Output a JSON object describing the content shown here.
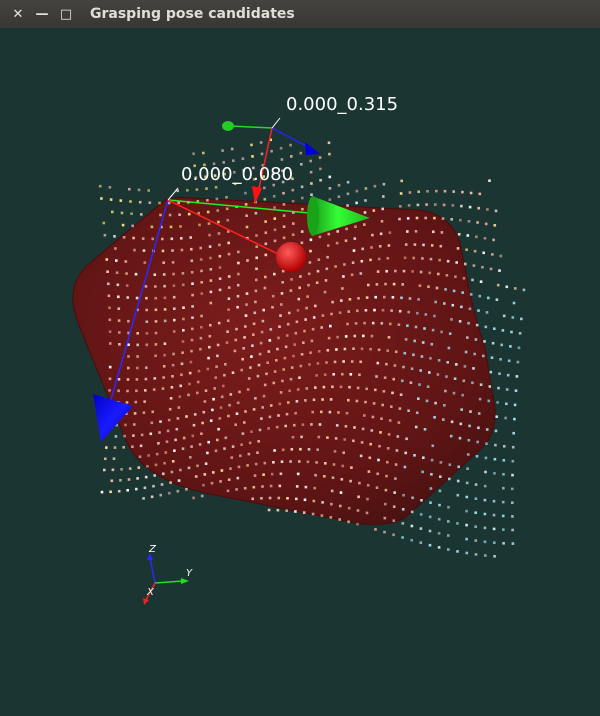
{
  "window": {
    "title": "Grasping pose candidates",
    "close_glyph": "✕",
    "minimize_glyph": "—",
    "maximize_glyph": "□"
  },
  "scene": {
    "background_color": "#1b3533",
    "object_color": "#7a1414",
    "pose_labels": [
      "0.000_0.315",
      "0.000_0.080"
    ]
  },
  "orientation_axes": {
    "z": "Z",
    "y": "Y",
    "x": "X"
  }
}
